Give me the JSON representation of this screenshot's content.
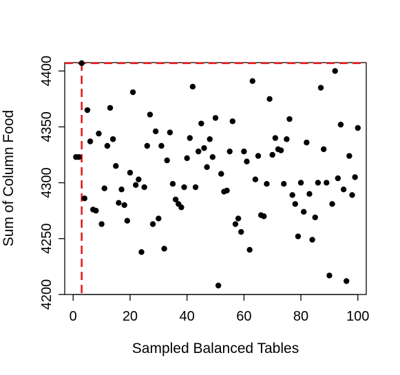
{
  "chart_data": {
    "type": "scatter",
    "title": "",
    "xlabel": "Sampled Balanced Tables",
    "ylabel": "Sum of Column Food",
    "xlim": [
      -2.96,
      102.96
    ],
    "ylim": [
      4200,
      4407.5
    ],
    "x_ticks": [
      0,
      20,
      40,
      60,
      80,
      100
    ],
    "y_ticks": [
      4200,
      4250,
      4300,
      4350,
      4400
    ],
    "grid": false,
    "legend": "none",
    "point_color": "#000000",
    "reference_lines": {
      "color": "#e31a1c",
      "style": "dashed",
      "x": 3,
      "y": 4407
    },
    "points": {
      "x": [
        1,
        2,
        3,
        4,
        5,
        6,
        7,
        8,
        9,
        10,
        11,
        12,
        13,
        14,
        15,
        16,
        17,
        18,
        19,
        20,
        21,
        22,
        23,
        24,
        25,
        26,
        27,
        28,
        29,
        30,
        31,
        32,
        33,
        34,
        35,
        36,
        37,
        38,
        39,
        40,
        41,
        42,
        43,
        44,
        45,
        46,
        47,
        48,
        49,
        50,
        51,
        52,
        53,
        54,
        55,
        56,
        57,
        58,
        59,
        60,
        61,
        62,
        63,
        64,
        65,
        66,
        67,
        68,
        69,
        70,
        71,
        72,
        73,
        74,
        75,
        76,
        77,
        78,
        79,
        80,
        81,
        82,
        83,
        84,
        85,
        86,
        87,
        88,
        89,
        90,
        91,
        92,
        93,
        94,
        95,
        96,
        97,
        98,
        99,
        100
      ],
      "y": [
        4323,
        4323,
        4407,
        4286,
        4365,
        4337,
        4276,
        4275,
        4344,
        4263,
        4295,
        4333,
        4367,
        4339,
        4315,
        4282,
        4294,
        4280,
        4266,
        4309,
        4381,
        4298,
        4303,
        4238,
        4296,
        4333,
        4361,
        4263,
        4346,
        4268,
        4333,
        4241,
        4320,
        4345,
        4299,
        4285,
        4281,
        4278,
        4296,
        4322,
        4340,
        4386,
        4296,
        4328,
        4353,
        4331,
        4314,
        4339,
        4323,
        4358,
        4208,
        4308,
        4292,
        4293,
        4328,
        4355,
        4263,
        4268,
        4256,
        4328,
        4319,
        4240,
        4391,
        4303,
        4324,
        4271,
        4270,
        4299,
        4375,
        4325,
        4340,
        4330,
        4329,
        4299,
        4339,
        4357,
        4289,
        4281,
        4252,
        4300,
        4274,
        4336,
        4290,
        4249,
        4269,
        4300,
        4385,
        4330,
        4300,
        4217,
        4281,
        4400,
        4304,
        4352,
        4294,
        4212,
        4324,
        4289,
        4305,
        4349
      ]
    }
  }
}
